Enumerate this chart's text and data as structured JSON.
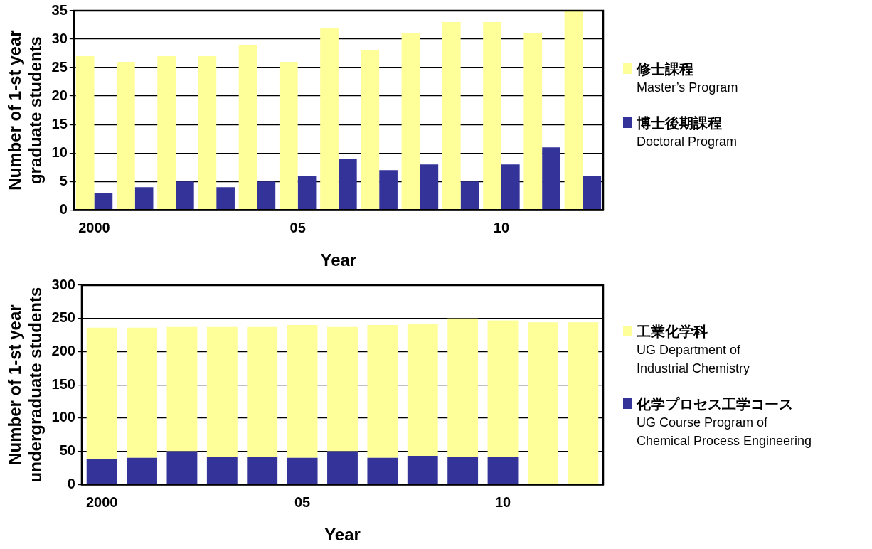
{
  "chart_data": [
    {
      "type": "bar",
      "xlabel": "Year",
      "ylabel": "Number of 1-st year\ngraduate students",
      "categories": [
        "2000",
        null,
        null,
        null,
        null,
        "05",
        null,
        null,
        null,
        null,
        "10",
        null,
        null
      ],
      "series": [
        {
          "name": "修士課程\nMaster’s Program",
          "color": "#ffff99",
          "values": [
            27,
            26,
            27,
            27,
            29,
            26,
            32,
            28,
            31,
            33,
            33,
            31,
            35
          ]
        },
        {
          "name": "博士後期課程\nDoctoral Program",
          "color": "#333399",
          "values": [
            3,
            4,
            5,
            4,
            5,
            6,
            9,
            7,
            8,
            5,
            8,
            11,
            6
          ]
        }
      ],
      "ylim": [
        0,
        35
      ],
      "yticks": [
        0,
        5,
        10,
        15,
        20,
        25,
        30,
        35
      ],
      "grid": "y",
      "legend": "right"
    },
    {
      "type": "bar",
      "stacked": true,
      "xlabel": "Year",
      "ylabel": "Number of 1-st year\nundergraduate students",
      "categories": [
        "2000",
        null,
        null,
        null,
        null,
        "05",
        null,
        null,
        null,
        null,
        "10",
        null,
        null
      ],
      "series": [
        {
          "name": "化学プロセス工学コース\nUG Course Program of\nChemical Process Engineering",
          "color": "#333399",
          "values": [
            38,
            40,
            50,
            42,
            42,
            40,
            50,
            40,
            43,
            42,
            42,
            null,
            null
          ]
        },
        {
          "name": "工業化学科\nUG Department of\nIndustrial Chemistry",
          "color": "#ffff99",
          "values": [
            198,
            196,
            187,
            195,
            195,
            200,
            187,
            200,
            198,
            208,
            205,
            244,
            244
          ]
        }
      ],
      "ylim": [
        0,
        300
      ],
      "yticks": [
        0,
        50,
        100,
        150,
        200,
        250,
        300
      ],
      "grid": "y",
      "legend": "right"
    }
  ]
}
